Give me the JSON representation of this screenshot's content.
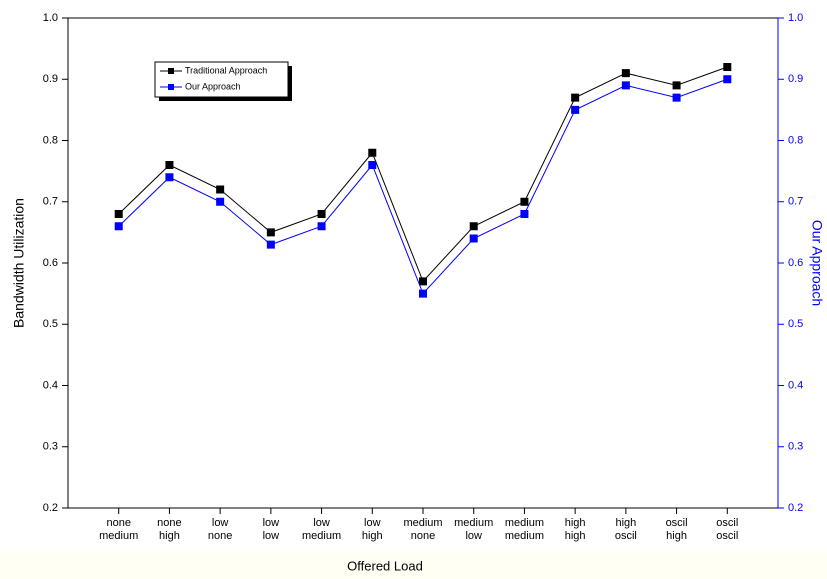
{
  "chart_data": {
    "type": "line",
    "x_label": "Offered Load",
    "y_label": "Bandwidth Utilization",
    "y2_label": "Our Approach",
    "categories": [
      [
        "none",
        "medium"
      ],
      [
        "none",
        "high"
      ],
      [
        "low",
        "none"
      ],
      [
        "low",
        "low"
      ],
      [
        "low",
        "medium"
      ],
      [
        "low",
        "high"
      ],
      [
        "medium",
        "none"
      ],
      [
        "medium",
        "low"
      ],
      [
        "medium",
        "medium"
      ],
      [
        "high",
        "high"
      ],
      [
        "high",
        "oscil"
      ],
      [
        "oscil",
        "high"
      ],
      [
        "oscil",
        "oscil"
      ]
    ],
    "series": [
      {
        "name": "Traditional Approach",
        "color": "#000000",
        "values": [
          0.68,
          0.76,
          0.72,
          0.65,
          0.68,
          0.78,
          0.57,
          0.66,
          0.7,
          0.87,
          0.91,
          0.89,
          0.92
        ]
      },
      {
        "name": "Our Approach",
        "color": "#0000ff",
        "axis": "y2",
        "values": [
          0.66,
          0.74,
          0.7,
          0.63,
          0.66,
          0.76,
          0.55,
          0.64,
          0.68,
          0.85,
          0.89,
          0.87,
          0.9
        ]
      }
    ],
    "ylim": [
      0.2,
      1.0
    ],
    "yticks": [
      0.2,
      0.3,
      0.4,
      0.5,
      0.6,
      0.7,
      0.8,
      0.9,
      {
        "value": 1,
        "label": "1.0"
      }
    ],
    "y2lim": [
      0.2,
      1.0
    ],
    "y2ticks": [
      0.2,
      0.3,
      0.4,
      0.5,
      0.6,
      0.7,
      0.8,
      0.9,
      {
        "value": 1,
        "label": "1.0"
      }
    ],
    "y2_color": "#0000ff",
    "grid": false
  }
}
